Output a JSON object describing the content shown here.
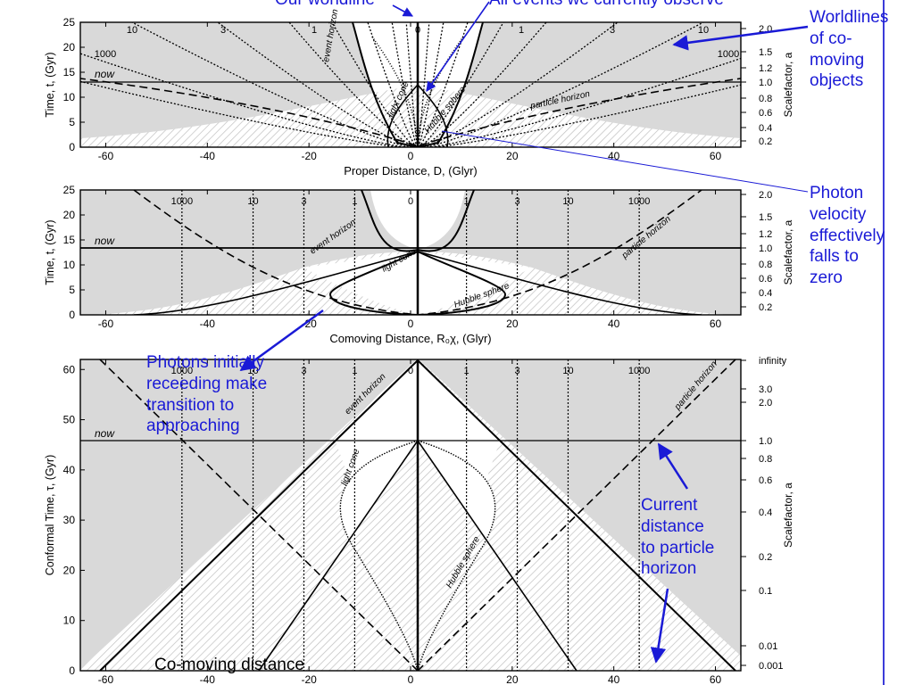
{
  "panels": [
    {
      "id": "proper",
      "ylabel": "Time, t, (Gyr)",
      "xlabel": "Proper Distance, D, (Glyr)",
      "right_label": "Scalefactor, a",
      "yticks": [
        0,
        5,
        10,
        15,
        20,
        25
      ],
      "xticks": [
        -60,
        -40,
        -20,
        0,
        20,
        40,
        60
      ],
      "right_ticks": [
        "0.2",
        "0.4",
        "0.6",
        "0.8",
        "1.0",
        "1.2",
        "1.5",
        "2.0"
      ],
      "now_label": "now",
      "top_numbers": [
        "10",
        "3",
        "1",
        "0",
        "1",
        "3",
        "10"
      ],
      "side_numbers": [
        "1000",
        "1000"
      ],
      "curve_labels": [
        "event horizon",
        "light cone",
        "Hubble sphere",
        "particle horizon"
      ]
    },
    {
      "id": "comoving",
      "ylabel": "Time, t, (Gyr)",
      "xlabel": "Comoving Distance, R₀χ, (Glyr)",
      "right_label": "Scalefactor, a",
      "yticks": [
        0,
        5,
        10,
        15,
        20,
        25
      ],
      "xticks": [
        -60,
        -40,
        -20,
        0,
        20,
        40,
        60
      ],
      "right_ticks": [
        "0.2",
        "0.4",
        "0.6",
        "0.8",
        "1.0",
        "1.2",
        "1.5",
        "2.0"
      ],
      "now_label": "now",
      "top_numbers": [
        "1000",
        "10",
        "3",
        "1",
        "0",
        "1",
        "3",
        "10",
        "1000"
      ],
      "curve_labels": [
        "event horizon",
        "light cone",
        "Hubble sphere",
        "particle horizon"
      ]
    },
    {
      "id": "conformal",
      "ylabel": "Conformal Time, τ, (Gyr)",
      "xlabel": "",
      "right_label": "Scalefactor, a",
      "yticks": [
        0,
        10,
        20,
        30,
        40,
        50,
        60
      ],
      "xticks": [
        -60,
        -40,
        -20,
        0,
        20,
        40,
        60
      ],
      "right_ticks": [
        "0.001",
        "0.01",
        "0.1",
        "0.2",
        "0.4",
        "0.6",
        "0.8",
        "1.0",
        "2.0",
        "3.0",
        "infinity"
      ],
      "now_label": "now",
      "top_numbers": [
        "1000",
        "10",
        "3",
        "1",
        "0",
        "1",
        "3",
        "10",
        "1000"
      ],
      "curve_labels": [
        "event horizon",
        "light cone",
        "Hubble sphere",
        "particle horizon"
      ]
    }
  ],
  "annotations": {
    "our_worldline": "Our worldline",
    "all_events": "All events we currently observe",
    "worldlines": "Worldlines\nof co-\nmoving\nobjects",
    "photon_velocity": "Photon\nvelocity\neffectively\nfalls to\nzero",
    "photons_initially": "Photons initially\nreceeding make\ntransition to\napproaching",
    "current_distance": "Current\ndistance\nto particle\nhorizon",
    "comoving_distance": "Co-moving distance"
  },
  "colors": {
    "annotation": "#1a1ad6",
    "shade": "#d9d9d9",
    "line": "#000000"
  },
  "chart_data": [
    {
      "type": "line",
      "title": "",
      "xlabel": "Proper Distance, D, (Glyr)",
      "ylabel": "Time, t, (Gyr)",
      "xlim": [
        -65,
        65
      ],
      "ylim": [
        0,
        25
      ],
      "now": 13.5,
      "series": [
        {
          "name": "now",
          "x": [
            -65,
            65
          ],
          "y": [
            13.5,
            13.5
          ]
        }
      ]
    },
    {
      "type": "line",
      "title": "",
      "xlabel": "Comoving Distance, R₀χ, (Glyr)",
      "ylabel": "Time, t, (Gyr)",
      "xlim": [
        -65,
        65
      ],
      "ylim": [
        0,
        25
      ],
      "now": 13.5,
      "comoving_worldlines_x": [
        -45,
        -31,
        -21,
        -11,
        0,
        11,
        21,
        31,
        45
      ],
      "series": [
        {
          "name": "now",
          "x": [
            -65,
            65
          ],
          "y": [
            13.5,
            13.5
          ]
        }
      ]
    },
    {
      "type": "line",
      "title": "",
      "xlabel": "",
      "ylabel": "Conformal Time, τ, (Gyr)",
      "xlim": [
        -65,
        65
      ],
      "ylim": [
        0,
        62
      ],
      "now": 46,
      "series": [
        {
          "name": "now",
          "x": [
            -65,
            65
          ],
          "y": [
            46,
            46
          ]
        }
      ]
    }
  ]
}
